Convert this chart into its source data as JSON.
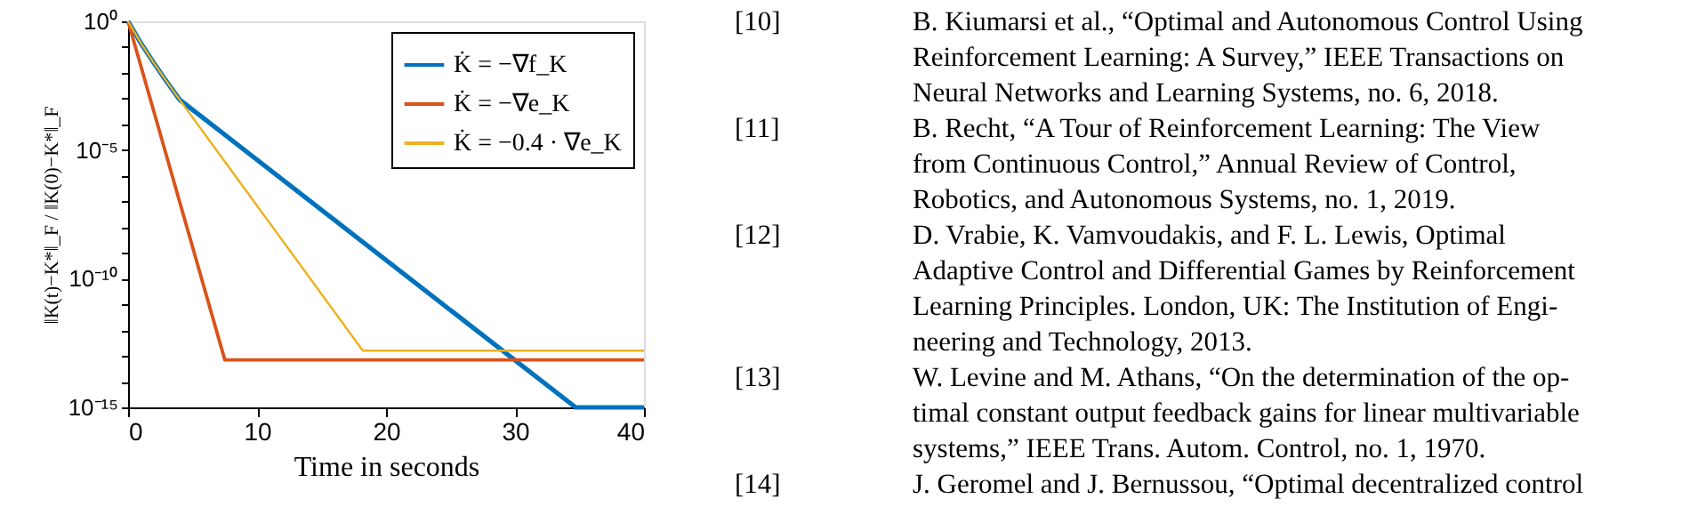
{
  "chart_data": {
    "type": "line",
    "xlabel": "Time in seconds",
    "ylabel": "‖K(t)−K*‖_F / ‖K(0)−K*‖_F",
    "log": true,
    "legend": "top right",
    "grid": false,
    "marker": "none",
    "line_style": "solid",
    "xlim": [
      0,
      40
    ],
    "xticks": [
      0,
      10,
      20,
      30,
      40
    ],
    "ylim": [
      1e-15,
      1
    ],
    "yticks": [
      {
        "value": 1,
        "label": "10⁰"
      },
      {
        "value": 0.1,
        "label": null
      },
      {
        "value": 0.01,
        "label": null
      },
      {
        "value": 0.001,
        "label": null
      },
      {
        "value": 0.0001,
        "label": null
      },
      {
        "value": 1e-05,
        "label": "10⁻⁵"
      },
      {
        "value": 1e-06,
        "label": null
      },
      {
        "value": 1e-07,
        "label": null
      },
      {
        "value": 1e-08,
        "label": null
      },
      {
        "value": 1e-09,
        "label": null
      },
      {
        "value": 1e-10,
        "label": "10⁻¹⁰"
      },
      {
        "value": 1e-11,
        "label": null
      },
      {
        "value": 1e-12,
        "label": null
      },
      {
        "value": 1e-13,
        "label": null
      },
      {
        "value": 1e-14,
        "label": null
      },
      {
        "value": 1e-15,
        "label": "10⁻¹⁵"
      }
    ],
    "series": [
      {
        "name": "K̇ = −∇f_K",
        "color": "#0072bd",
        "x": [
          0,
          1,
          2,
          3,
          4,
          34.7,
          40
        ],
        "values": [
          1,
          0.14,
          0.024,
          0.0045,
          0.0009,
          1e-15,
          1e-15
        ]
      },
      {
        "name": "K̇ = −∇e_K",
        "color": "#d95319",
        "x": [
          0,
          7.5,
          40
        ],
        "values": [
          1,
          7e-14,
          7e-14
        ]
      },
      {
        "name": "K̇ = −0.4 · ∇e_K",
        "color": "#edb120",
        "x": [
          0,
          1,
          2,
          3,
          4,
          18.2,
          40
        ],
        "values": [
          1,
          0.14,
          0.024,
          0.0045,
          0.0009,
          1.6e-13,
          1.6e-13
        ]
      }
    ],
    "annotations": [
      "[10]",
      "B. Kiumarsi et al., “Optimal and Autonomous Control Using",
      "Reinforcement Learning: A Survey,” IEEE Transactions on",
      "Neural Networks and Learning Systems, no. 6, 2018.",
      "[11]",
      "B. Recht, “A Tour of Reinforcement Learning: The View",
      "from Continuous Control,” Annual Review of Control,",
      "Robotics, and Autonomous Systems, no. 1, 2019.",
      "[12]",
      "D. Vrabie, K. Vamvoudakis, and F. L. Lewis, Optimal",
      "Adaptive Control and Differential Games by Reinforcement",
      "Learning Principles. London, UK: The Institution of Engi-",
      "neering and Technology, 2013.",
      "[13]",
      "W. Levine and M. Athans, “On the determination of the op-",
      "timal constant output feedback gains for linear multivariable",
      "systems,” IEEE Trans. Autom. Control, no. 1, 1970.",
      "[14]",
      "J. Geromel and J. Bernussou, “Optimal decentralized control"
    ]
  }
}
